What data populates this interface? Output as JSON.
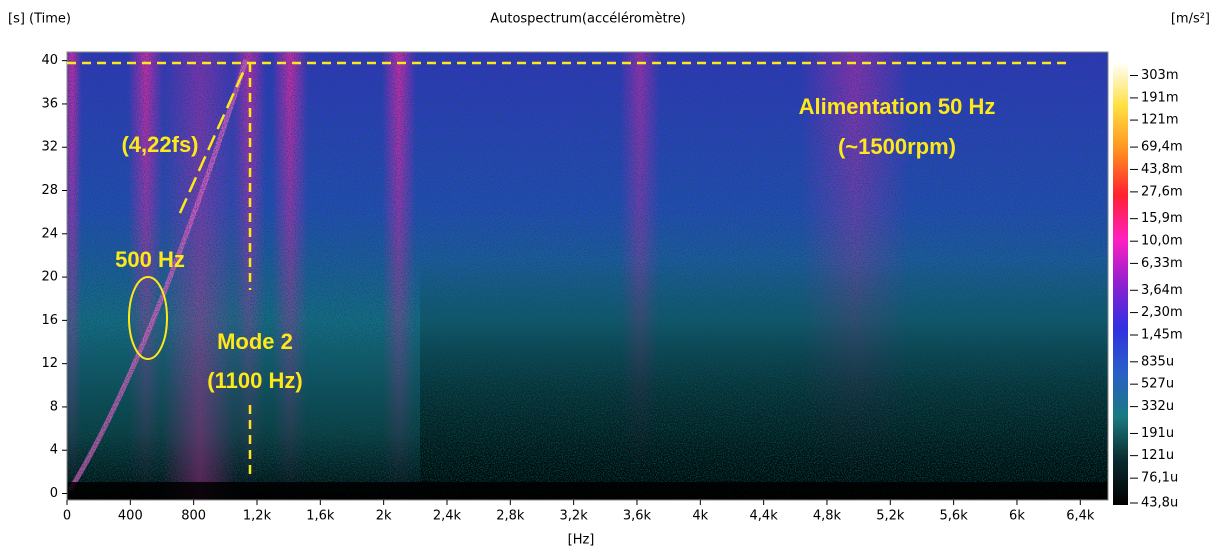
{
  "chart_data": {
    "type": "spectrogram",
    "title": "Autospectrum(accéléromètre)",
    "y_label": "[s] (Time)",
    "x_label": "[Hz]",
    "colorbar_label": "[m/s²]",
    "xlim": [
      0,
      6575
    ],
    "ylim": [
      -0.6,
      40.8
    ],
    "xticks": [
      0,
      400,
      800,
      {
        "value": 1200,
        "label": "1,2k"
      },
      {
        "value": 1600,
        "label": "1,6k"
      },
      {
        "value": 2000,
        "label": "2k"
      },
      {
        "value": 2400,
        "label": "2,4k"
      },
      {
        "value": 2800,
        "label": "2,8k"
      },
      {
        "value": 3200,
        "label": "3,2k"
      },
      {
        "value": 3600,
        "label": "3,6k"
      },
      {
        "value": 4000,
        "label": "4k"
      },
      {
        "value": 4400,
        "label": "4,4k"
      },
      {
        "value": 4800,
        "label": "4,8k"
      },
      {
        "value": 5200,
        "label": "5,2k"
      },
      {
        "value": 5600,
        "label": "5,6k"
      },
      {
        "value": 6000,
        "label": "6k"
      },
      {
        "value": 6400,
        "label": "6,4k"
      }
    ],
    "yticks": [
      0,
      4,
      8,
      12,
      16,
      20,
      24,
      28,
      32,
      36,
      40
    ],
    "color_scale": "log",
    "clim": [
      4.38e-05,
      0.4
    ],
    "colormap": [
      "#000000",
      "#0b2a2e",
      "#1a7a80",
      "#2a5fc8",
      "#3030e0",
      "#9020d0",
      "#ff20c0",
      "#ff2030",
      "#ff9020",
      "#ffe040",
      "#ffffff"
    ],
    "cticks": [
      {
        "value": 0.303,
        "label": "303m"
      },
      {
        "value": 0.191,
        "label": "191m"
      },
      {
        "value": 0.121,
        "label": "121m"
      },
      {
        "value": 0.0694,
        "label": "69,4m"
      },
      {
        "value": 0.0438,
        "label": "43,8m"
      },
      {
        "value": 0.0276,
        "label": "27,6m"
      },
      {
        "value": 0.0159,
        "label": "15,9m"
      },
      {
        "value": 0.01,
        "label": "10,0m"
      },
      {
        "value": 0.00633,
        "label": "6,33m"
      },
      {
        "value": 0.00364,
        "label": "3,64m"
      },
      {
        "value": 0.0023,
        "label": "2,30m"
      },
      {
        "value": 0.00145,
        "label": "1,45m"
      },
      {
        "value": 0.000835,
        "label": "835u"
      },
      {
        "value": 0.000527,
        "label": "527u"
      },
      {
        "value": 0.000332,
        "label": "332u"
      },
      {
        "value": 0.000191,
        "label": "191u"
      },
      {
        "value": 0.000121,
        "label": "121u"
      },
      {
        "value": 7.61e-05,
        "label": "76,1u"
      },
      {
        "value": 4.38e-05,
        "label": "43,8u"
      }
    ],
    "annotations": [
      "Alimentation 50 Hz",
      "(~1500rpm)",
      "(4,22fs)",
      "500 Hz",
      "Mode 2",
      "(1100 Hz)"
    ]
  }
}
